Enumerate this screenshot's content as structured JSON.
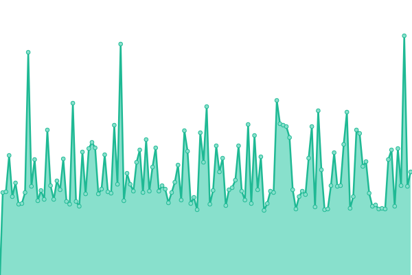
{
  "chart_data": {
    "type": "area",
    "color": "#1fb994",
    "fill": "#88e0cc",
    "markers": true,
    "ylim": [
      0,
      400
    ],
    "values": [
      120,
      121,
      174,
      114,
      134,
      103,
      104,
      120,
      324,
      129,
      168,
      108,
      123,
      110,
      211,
      130,
      110,
      137,
      124,
      169,
      107,
      103,
      250,
      107,
      100,
      179,
      118,
      184,
      193,
      185,
      118,
      125,
      175,
      121,
      119,
      218,
      132,
      336,
      108,
      148,
      132,
      122,
      164,
      182,
      120,
      197,
      122,
      157,
      185,
      122,
      130,
      125,
      105,
      120,
      135,
      160,
      109,
      210,
      180,
      104,
      113,
      95,
      207,
      164,
      245,
      103,
      123,
      188,
      150,
      170,
      101,
      124,
      127,
      138,
      188,
      122,
      109,
      219,
      104,
      203,
      124,
      172,
      94,
      104,
      122,
      120,
      254,
      220,
      218,
      216,
      200,
      124,
      96,
      114,
      122,
      117,
      170,
      216,
      99,
      239,
      153,
      95,
      96,
      130,
      178,
      129,
      130,
      190,
      237,
      97,
      114,
      211,
      206,
      158,
      165,
      119,
      100,
      102,
      96,
      97,
      96,
      168,
      182,
      100,
      184,
      130,
      348,
      129,
      150
    ]
  }
}
